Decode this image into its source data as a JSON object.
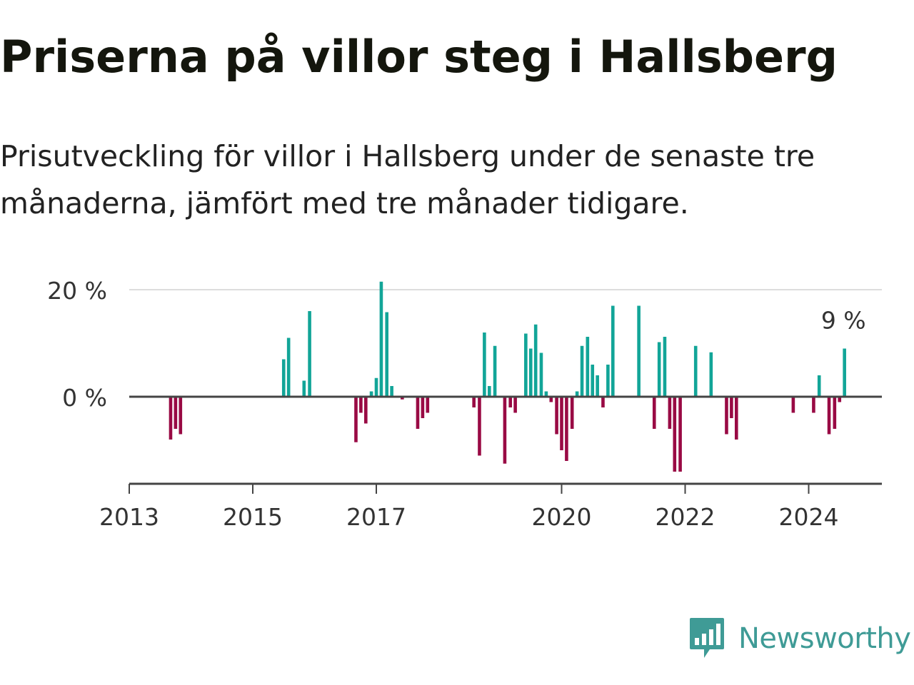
{
  "title": "Priserna på villor steg i Hallsberg",
  "subtitle": "Prisutveckling för villor i Hallsberg under de senaste tre månaderna, jämfört med tre månader tidigare.",
  "logo": {
    "text": "Newsworthy",
    "icon": "bar-chart-speech-bubble-icon",
    "color": "#3f9b96"
  },
  "colors": {
    "positive": "#12a598",
    "negative": "#990a44",
    "zero_line": "#444444",
    "grid": "#dddddd",
    "axis": "#444444"
  },
  "chart_data": {
    "type": "bar",
    "title": "Priserna på villor steg i Hallsberg",
    "subtitle": "Prisutveckling för villor i Hallsberg under de senaste tre månaderna, jämfört med tre månader tidigare.",
    "xlabel": "",
    "ylabel": "",
    "unit": "%",
    "ylim": [
      -16,
      20
    ],
    "y_ticks": [
      {
        "value": 0,
        "label": "0 %"
      },
      {
        "value": 20,
        "label": "20 %"
      }
    ],
    "x_ticks": [
      {
        "value": 2013,
        "label": "2013"
      },
      {
        "value": 2015,
        "label": "2015"
      },
      {
        "value": 2017,
        "label": "2017"
      },
      {
        "value": 2020,
        "label": "2020"
      },
      {
        "value": 2022,
        "label": "2022"
      },
      {
        "value": 2024,
        "label": "2024"
      }
    ],
    "xlim": [
      2013,
      2025.2
    ],
    "grid": "horizontal",
    "annotation": {
      "x": 2024.58,
      "value": 9,
      "label": "9 %"
    },
    "x": [
      2013.67,
      2013.75,
      2013.83,
      2015.5,
      2015.58,
      2015.83,
      2015.92,
      2016.67,
      2016.75,
      2016.83,
      2016.92,
      2017.0,
      2017.08,
      2017.17,
      2017.25,
      2017.42,
      2017.67,
      2017.75,
      2017.83,
      2018.58,
      2018.67,
      2018.75,
      2018.83,
      2018.92,
      2019.08,
      2019.17,
      2019.25,
      2019.42,
      2019.5,
      2019.58,
      2019.67,
      2019.75,
      2019.83,
      2019.92,
      2020.0,
      2020.08,
      2020.17,
      2020.25,
      2020.33,
      2020.42,
      2020.5,
      2020.58,
      2020.67,
      2020.75,
      2020.83,
      2021.25,
      2021.5,
      2021.58,
      2021.67,
      2021.75,
      2021.83,
      2021.92,
      2022.17,
      2022.42,
      2022.67,
      2022.75,
      2022.83,
      2023.75,
      2024.08,
      2024.17,
      2024.33,
      2024.42,
      2024.5,
      2024.58
    ],
    "values": [
      -8,
      -6,
      -7,
      7,
      11,
      3,
      16,
      -8.5,
      -3,
      -5,
      1,
      3.5,
      21.5,
      15.8,
      2,
      -0.5,
      -6,
      -4,
      -3,
      -2,
      -11,
      12,
      2,
      9.5,
      -12.5,
      -2,
      -3,
      11.8,
      9,
      13.5,
      8.2,
      1,
      -1,
      -7,
      -10,
      -12,
      -6,
      1,
      9.5,
      11.2,
      6,
      4,
      -2,
      6,
      17,
      17,
      -6,
      10.2,
      11.2,
      -6,
      -14,
      -14,
      9.5,
      8.3,
      -7,
      -4,
      -8,
      -3,
      -3,
      4,
      -7,
      -6,
      -1,
      9
    ]
  }
}
